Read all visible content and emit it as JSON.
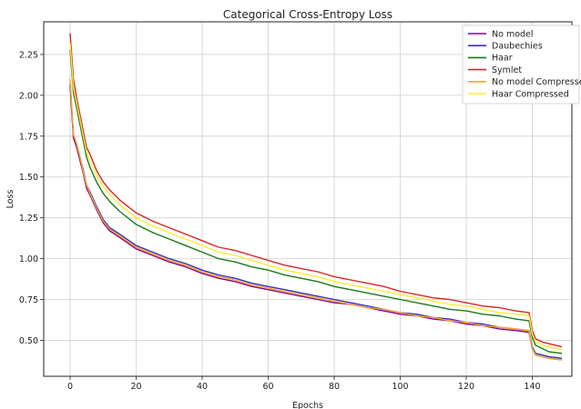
{
  "chart_data": {
    "type": "line",
    "title": "Categorical Cross-Entropy Loss",
    "xlabel": "Epochs",
    "ylabel": "Loss",
    "xlim": [
      -8,
      152
    ],
    "ylim": [
      0.28,
      2.45
    ],
    "xticks": [
      0,
      20,
      40,
      60,
      80,
      100,
      120,
      140
    ],
    "yticks": [
      0.5,
      0.75,
      1.0,
      1.25,
      1.5,
      1.75,
      2.0,
      2.25
    ],
    "ytick_labels": [
      "0.50",
      "0.75",
      "1.00",
      "1.25",
      "1.50",
      "1.75",
      "2.00",
      "2.25"
    ],
    "grid": true,
    "legend_position": "top-right",
    "x": [
      0,
      1,
      2,
      3,
      4,
      5,
      6,
      8,
      10,
      12,
      15,
      20,
      25,
      30,
      35,
      40,
      45,
      50,
      55,
      60,
      65,
      70,
      75,
      80,
      85,
      90,
      95,
      100,
      105,
      110,
      115,
      120,
      125,
      130,
      135,
      139,
      140,
      141,
      143,
      145,
      149
    ],
    "series": [
      {
        "name": "No model",
        "color": "#8b008b",
        "values": [
          2.06,
          1.74,
          1.68,
          1.6,
          1.52,
          1.43,
          1.39,
          1.3,
          1.22,
          1.17,
          1.13,
          1.06,
          1.02,
          0.98,
          0.95,
          0.91,
          0.88,
          0.86,
          0.83,
          0.81,
          0.79,
          0.77,
          0.75,
          0.73,
          0.72,
          0.7,
          0.68,
          0.66,
          0.65,
          0.63,
          0.62,
          0.6,
          0.59,
          0.57,
          0.56,
          0.55,
          0.45,
          0.41,
          0.4,
          0.39,
          0.38
        ]
      },
      {
        "name": "Daubechies",
        "color": "#3333bb",
        "values": [
          2.07,
          1.76,
          1.7,
          1.62,
          1.54,
          1.45,
          1.41,
          1.32,
          1.24,
          1.19,
          1.15,
          1.08,
          1.04,
          1.0,
          0.97,
          0.93,
          0.9,
          0.88,
          0.85,
          0.83,
          0.81,
          0.79,
          0.77,
          0.75,
          0.73,
          0.71,
          0.69,
          0.67,
          0.66,
          0.64,
          0.63,
          0.61,
          0.6,
          0.58,
          0.57,
          0.56,
          0.46,
          0.42,
          0.41,
          0.4,
          0.39
        ]
      },
      {
        "name": "Haar",
        "color": "#1a7a1a",
        "values": [
          2.28,
          2.02,
          1.92,
          1.82,
          1.72,
          1.62,
          1.56,
          1.47,
          1.4,
          1.35,
          1.29,
          1.21,
          1.16,
          1.12,
          1.08,
          1.04,
          1.0,
          0.98,
          0.95,
          0.93,
          0.9,
          0.88,
          0.86,
          0.83,
          0.81,
          0.79,
          0.77,
          0.75,
          0.73,
          0.71,
          0.69,
          0.68,
          0.66,
          0.65,
          0.63,
          0.62,
          0.52,
          0.47,
          0.45,
          0.43,
          0.42
        ]
      },
      {
        "name": "Symlet",
        "color": "#d62728",
        "values": [
          2.38,
          2.1,
          1.98,
          1.88,
          1.78,
          1.68,
          1.64,
          1.54,
          1.47,
          1.42,
          1.36,
          1.28,
          1.23,
          1.19,
          1.15,
          1.11,
          1.07,
          1.05,
          1.02,
          0.99,
          0.96,
          0.94,
          0.92,
          0.89,
          0.87,
          0.85,
          0.83,
          0.8,
          0.78,
          0.76,
          0.75,
          0.73,
          0.71,
          0.7,
          0.68,
          0.67,
          0.56,
          0.51,
          0.49,
          0.48,
          0.46
        ]
      },
      {
        "name": "No model Compressed",
        "color": "#f5a623",
        "values": [
          2.1,
          1.76,
          1.7,
          1.62,
          1.53,
          1.45,
          1.4,
          1.31,
          1.23,
          1.18,
          1.14,
          1.07,
          1.03,
          0.99,
          0.96,
          0.92,
          0.89,
          0.87,
          0.84,
          0.82,
          0.8,
          0.78,
          0.76,
          0.74,
          0.72,
          0.7,
          0.69,
          0.67,
          0.65,
          0.64,
          0.62,
          0.61,
          0.59,
          0.58,
          0.57,
          0.56,
          0.45,
          0.41,
          0.4,
          0.39,
          0.38
        ]
      },
      {
        "name": "Haar Compressed",
        "color": "#ffeb3b",
        "values": [
          2.32,
          2.05,
          1.95,
          1.85,
          1.75,
          1.65,
          1.6,
          1.51,
          1.44,
          1.39,
          1.33,
          1.25,
          1.2,
          1.16,
          1.12,
          1.08,
          1.04,
          1.02,
          0.99,
          0.96,
          0.93,
          0.91,
          0.89,
          0.86,
          0.84,
          0.82,
          0.8,
          0.78,
          0.76,
          0.74,
          0.72,
          0.71,
          0.69,
          0.67,
          0.66,
          0.65,
          0.54,
          0.49,
          0.47,
          0.46,
          0.44
        ]
      }
    ]
  }
}
